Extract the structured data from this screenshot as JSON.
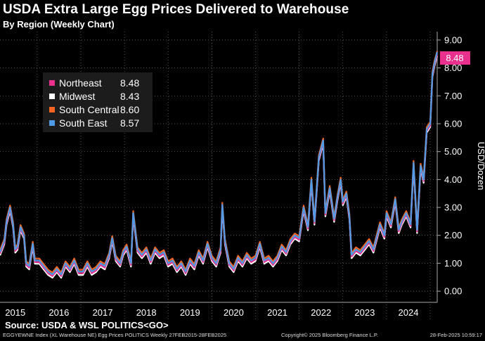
{
  "title": "USDA Extra Large Egg Prices Delivered to Warehouse",
  "subtitle": "By Region (Weekly Chart)",
  "source": "Source: USDA & WSL POLITICS<GO>",
  "footer": {
    "left": "EGGYEWNE Index (XL Warehouse NE) Egg Prices POLITICS  Weekly 27FEB2015-28FEB2025",
    "center": "Copyright© 2025 Bloomberg Finance L.P.",
    "right": "28-Feb-2025 10:59:17"
  },
  "last_value_tag": "8.48",
  "colors": {
    "northeast": "#e8308c",
    "midwest": "#ffffff",
    "south_central": "#f26522",
    "south_east": "#4f9be6"
  },
  "chart_data": {
    "type": "line",
    "title": "USDA Extra Large Egg Prices Delivered to Warehouse",
    "subtitle": "By Region (Weekly Chart)",
    "xlabel": "",
    "ylabel": "USD/Dozen",
    "ylim": [
      -0.4,
      9.3
    ],
    "xlim": [
      2015.15,
      2025.16
    ],
    "y_ticks": [
      "0.00",
      "1.00",
      "2.00",
      "3.00",
      "4.00",
      "5.00",
      "6.00",
      "7.00",
      "8.00",
      "9.00"
    ],
    "x_ticks": [
      "2015",
      "2016",
      "2017",
      "2018",
      "2019",
      "2020",
      "2021",
      "2022",
      "2023",
      "2024"
    ],
    "legend_position": "top-left",
    "legend": [
      {
        "name": "Northeast",
        "value": "8.48"
      },
      {
        "name": "Midwest",
        "value": "8.43"
      },
      {
        "name": "South Central",
        "value": "8.60"
      },
      {
        "name": "South East",
        "value": "8.57"
      }
    ],
    "base_x": [
      2015.15,
      2015.25,
      2015.3,
      2015.38,
      2015.45,
      2015.5,
      2015.55,
      2015.62,
      2015.7,
      2015.75,
      2015.82,
      2015.9,
      2015.95,
      2016.05,
      2016.15,
      2016.25,
      2016.35,
      2016.45,
      2016.55,
      2016.65,
      2016.75,
      2016.85,
      2016.95,
      2017.05,
      2017.15,
      2017.25,
      2017.35,
      2017.45,
      2017.55,
      2017.65,
      2017.72,
      2017.8,
      2017.9,
      2017.97,
      2018.05,
      2018.15,
      2018.2,
      2018.3,
      2018.4,
      2018.5,
      2018.6,
      2018.7,
      2018.8,
      2018.9,
      2019.0,
      2019.1,
      2019.2,
      2019.3,
      2019.4,
      2019.5,
      2019.6,
      2019.7,
      2019.8,
      2019.9,
      2020.0,
      2020.1,
      2020.2,
      2020.24,
      2020.3,
      2020.4,
      2020.5,
      2020.6,
      2020.7,
      2020.8,
      2020.9,
      2021.0,
      2021.1,
      2021.2,
      2021.3,
      2021.4,
      2021.5,
      2021.6,
      2021.7,
      2021.8,
      2021.9,
      2022.0,
      2022.1,
      2022.2,
      2022.28,
      2022.35,
      2022.45,
      2022.55,
      2022.6,
      2022.7,
      2022.8,
      2022.88,
      2022.95,
      2023.0,
      2023.08,
      2023.15,
      2023.2,
      2023.3,
      2023.4,
      2023.5,
      2023.6,
      2023.7,
      2023.75,
      2023.85,
      2023.95,
      2024.0,
      2024.1,
      2024.2,
      2024.28,
      2024.35,
      2024.45,
      2024.55,
      2024.62,
      2024.7,
      2024.78,
      2024.85,
      2024.92,
      2025.0,
      2025.05,
      2025.1,
      2025.16
    ],
    "base_y": [
      1.4,
      1.8,
      2.5,
      3.0,
      2.4,
      1.5,
      1.6,
      2.3,
      2.0,
      1.0,
      0.9,
      1.7,
      1.1,
      1.1,
      0.9,
      0.7,
      0.6,
      0.8,
      0.6,
      1.0,
      0.8,
      1.1,
      0.7,
      0.7,
      1.0,
      0.7,
      0.8,
      1.0,
      0.9,
      1.3,
      1.9,
      1.2,
      1.0,
      1.4,
      1.6,
      1.0,
      2.8,
      1.5,
      1.3,
      1.5,
      1.1,
      1.5,
      1.3,
      1.4,
      1.0,
      1.1,
      0.8,
      1.0,
      0.7,
      1.1,
      0.9,
      1.4,
      1.1,
      1.7,
      1.2,
      1.0,
      1.5,
      3.1,
      1.8,
      1.0,
      0.8,
      1.2,
      1.0,
      1.3,
      1.1,
      1.2,
      1.7,
      1.1,
      1.2,
      1.0,
      1.2,
      1.6,
      1.4,
      1.8,
      2.0,
      1.9,
      3.0,
      2.3,
      4.0,
      2.5,
      4.8,
      5.4,
      2.8,
      3.7,
      2.6,
      3.4,
      4.0,
      3.2,
      3.5,
      2.7,
      1.3,
      1.5,
      1.4,
      1.6,
      1.8,
      1.5,
      1.8,
      2.4,
      2.0,
      2.8,
      2.4,
      3.3,
      2.2,
      2.5,
      2.8,
      2.4,
      4.6,
      2.2,
      4.5,
      4.0,
      5.8,
      6.0,
      7.8,
      8.2,
      8.5
    ],
    "series": [
      {
        "name": "Northeast",
        "offset": -0.06,
        "last": 8.48
      },
      {
        "name": "Midwest",
        "offset": -0.12,
        "last": 8.43
      },
      {
        "name": "South Central",
        "offset": 0.07,
        "last": 8.6
      },
      {
        "name": "South East",
        "offset": 0.0,
        "last": 8.57
      }
    ]
  }
}
